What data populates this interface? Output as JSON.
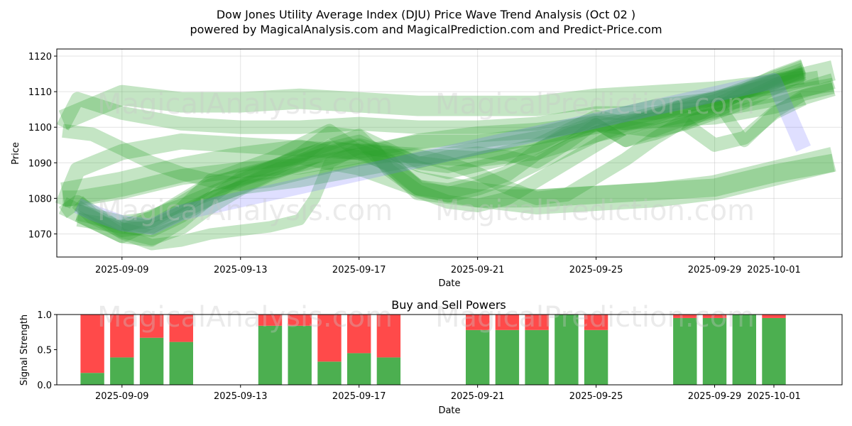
{
  "title_line1": "Dow Jones Utility Average Index (DJU) Price Wave Trend Analysis (Oct 02 )",
  "title_line2": "powered by MagicalAnalysis.com and MagicalPrediction.com and Predict-Price.com",
  "watermarks": [
    "MagicalAnalysis.com",
    "MagicalPrediction.com"
  ],
  "colors": {
    "wave": "#2ca02c",
    "wave_blue": "#6f6fff",
    "buy": "#4caf50",
    "sell": "#ff4a4a"
  },
  "chart_data": [
    {
      "type": "area",
      "title": "",
      "xlabel": "Date",
      "ylabel": "Price",
      "ylim": [
        1063.5,
        1122
      ],
      "xlim": [
        -2.2,
        24.3
      ],
      "x_ticks": [
        {
          "pos": 0,
          "label": "2025-09-09"
        },
        {
          "pos": 4,
          "label": "2025-09-13"
        },
        {
          "pos": 8,
          "label": "2025-09-17"
        },
        {
          "pos": 12,
          "label": "2025-09-21"
        },
        {
          "pos": 16,
          "label": "2025-09-25"
        },
        {
          "pos": 20,
          "label": "2025-09-29"
        },
        {
          "pos": 22,
          "label": "2025-10-01"
        }
      ],
      "y_ticks": [
        1070,
        1080,
        1090,
        1100,
        1110,
        1120
      ],
      "grid": true,
      "series": [
        {
          "name": "wave-1",
          "color": "green",
          "width": 14,
          "x": [
            -2,
            -1.5,
            0,
            2,
            4,
            6,
            8,
            10,
            12,
            14,
            16,
            18,
            20,
            22,
            24
          ],
          "values": [
            1078,
            1088,
            1093,
            1096,
            1095,
            1094,
            1093,
            1092,
            1091,
            1093,
            1098,
            1102,
            1105,
            1108,
            1113
          ]
        },
        {
          "name": "wave-2",
          "color": "green",
          "width": 12,
          "x": [
            -2,
            -1.5,
            0,
            2,
            4,
            6,
            8,
            10,
            12,
            14,
            16,
            18,
            20,
            22,
            24
          ],
          "values": [
            1100,
            1108,
            1104,
            1101,
            1100,
            1100,
            1101,
            1100,
            1100,
            1101,
            1104,
            1104,
            1106,
            1109,
            1112
          ]
        },
        {
          "name": "wave-3",
          "color": "green",
          "width": 14,
          "x": [
            -2,
            -1.5,
            0,
            2,
            4,
            6,
            8,
            10,
            12,
            14,
            16,
            18,
            20,
            22,
            24
          ],
          "values": [
            1080,
            1080,
            1082,
            1086,
            1088,
            1089,
            1092,
            1096,
            1098,
            1099,
            1101,
            1102,
            1103,
            1106,
            1111
          ]
        },
        {
          "name": "wave-4",
          "color": "green",
          "width": 12,
          "x": [
            -2,
            -1.5,
            0,
            1,
            2,
            3,
            4,
            5,
            6,
            7,
            8,
            10,
            12,
            14,
            16,
            18,
            20,
            22,
            23
          ],
          "values": [
            1076,
            1079,
            1071,
            1072,
            1077,
            1085,
            1088,
            1091,
            1095,
            1099,
            1093,
            1096,
            1096,
            1098,
            1102,
            1106,
            1108,
            1113,
            1114
          ]
        },
        {
          "name": "wave-5",
          "color": "green",
          "width": 16,
          "x": [
            -2,
            -1.5,
            0,
            1,
            2,
            3,
            4,
            6,
            8,
            9,
            10,
            12,
            14,
            16,
            18,
            20,
            22,
            24
          ],
          "values": [
            1078,
            1076,
            1070,
            1074,
            1078,
            1083,
            1086,
            1090,
            1094,
            1090,
            1082,
            1080,
            1080,
            1081,
            1082,
            1083,
            1087,
            1090
          ]
        },
        {
          "name": "wave-6",
          "color": "green",
          "width": 12,
          "x": [
            -1.5,
            0,
            1,
            2,
            3,
            4,
            6,
            8,
            10,
            12,
            14,
            16,
            18,
            20,
            22,
            23.5
          ],
          "values": [
            1074,
            1072,
            1071,
            1075,
            1080,
            1083,
            1085,
            1088,
            1091,
            1094,
            1097,
            1100,
            1104,
            1108,
            1112,
            1114
          ]
        },
        {
          "name": "wave-7",
          "color": "green",
          "width": 10,
          "x": [
            -1.5,
            0,
            1,
            2,
            3,
            4,
            6,
            8,
            9,
            10,
            11,
            12,
            13,
            14,
            15,
            16,
            17,
            18,
            19,
            20,
            21,
            22,
            23
          ],
          "values": [
            1075,
            1069,
            1068,
            1073,
            1080,
            1086,
            1092,
            1098,
            1094,
            1090,
            1092,
            1093,
            1092,
            1090,
            1095,
            1101,
            1096,
            1098,
            1101,
            1105,
            1110,
            1113,
            1115
          ]
        },
        {
          "name": "wave-8",
          "color": "green",
          "width": 14,
          "x": [
            -1.5,
            0,
            1,
            2,
            3,
            4,
            5,
            6,
            7,
            8,
            9,
            10,
            11,
            12,
            13,
            14,
            15,
            16,
            17,
            18,
            19,
            20,
            21,
            22,
            23
          ],
          "values": [
            1076,
            1073,
            1074,
            1079,
            1084,
            1086,
            1088,
            1092,
            1098,
            1097,
            1089,
            1083,
            1082,
            1084,
            1087,
            1093,
            1098,
            1101,
            1100,
            1103,
            1106,
            1108,
            1110,
            1114,
            1117
          ]
        },
        {
          "name": "wave-9",
          "color": "green",
          "width": 10,
          "x": [
            -1.5,
            0,
            1,
            2,
            3,
            4,
            5,
            6,
            6.5,
            7,
            8,
            9,
            10,
            11,
            12,
            13,
            14,
            15,
            16,
            17,
            18,
            19,
            20,
            21,
            22,
            23
          ],
          "values": [
            1078,
            1070,
            1067,
            1068,
            1070,
            1071,
            1072,
            1074,
            1080,
            1090,
            1094,
            1093,
            1089,
            1087,
            1089,
            1091,
            1094,
            1098,
            1101,
            1096,
            1099,
            1102,
            1104,
            1108,
            1112,
            1116
          ]
        },
        {
          "name": "wave-10",
          "color": "green",
          "width": 18,
          "x": [
            -2,
            0,
            2,
            4,
            6,
            8,
            10,
            12,
            14,
            16,
            18,
            20,
            22,
            24
          ],
          "values": [
            1102,
            1109,
            1107,
            1107,
            1108,
            1107,
            1106,
            1106,
            1106,
            1108,
            1109,
            1110,
            1112,
            1116
          ]
        },
        {
          "name": "wave-11",
          "color": "green",
          "width": 22,
          "x": [
            -2,
            0,
            2,
            4,
            6,
            8,
            10,
            12,
            14,
            16,
            18,
            20,
            22,
            24
          ],
          "values": [
            1081,
            1084,
            1088,
            1091,
            1093,
            1090,
            1084,
            1081,
            1079,
            1080,
            1081,
            1083,
            1087,
            1091
          ]
        },
        {
          "name": "wave-12",
          "color": "green",
          "width": 12,
          "x": [
            0,
            2,
            4,
            6,
            8,
            8.5,
            9,
            10,
            11,
            12,
            13,
            14,
            15,
            16,
            17,
            18,
            19,
            20,
            21,
            22,
            23
          ],
          "values": [
            1072,
            1078,
            1085,
            1092,
            1096,
            1094,
            1088,
            1082,
            1079,
            1078,
            1080,
            1085,
            1090,
            1095,
            1100,
            1099,
            1101,
            1104,
            1107,
            1111,
            1115
          ]
        },
        {
          "name": "wave-13",
          "color": "green",
          "width": 12,
          "x": [
            0,
            1,
            2,
            3,
            4,
            5,
            6,
            7,
            8,
            9,
            10,
            11,
            12,
            13,
            14,
            15,
            16,
            17,
            18,
            19,
            20,
            21,
            22,
            23
          ],
          "values": [
            1073,
            1072,
            1076,
            1080,
            1083,
            1087,
            1090,
            1093,
            1095,
            1093,
            1090,
            1089,
            1091,
            1093,
            1095,
            1099,
            1103,
            1101,
            1103,
            1106,
            1108,
            1111,
            1114,
            1117
          ]
        },
        {
          "name": "wave-14",
          "color": "green",
          "width": 14,
          "x": [
            -1.5,
            -1,
            0,
            1,
            2,
            3,
            4,
            5,
            6,
            7,
            8,
            9,
            10,
            11,
            12,
            13,
            14,
            15,
            16,
            17,
            18,
            19,
            20,
            21,
            22,
            23
          ],
          "values": [
            1079,
            1075,
            1071,
            1069,
            1072,
            1078,
            1083,
            1087,
            1090,
            1094,
            1093,
            1090,
            1083,
            1081,
            1083,
            1086,
            1090,
            1094,
            1098,
            1101,
            1103,
            1105,
            1107,
            1110,
            1113,
            1116
          ]
        },
        {
          "name": "wave-15",
          "color": "green",
          "width": 12,
          "x": [
            19,
            20,
            21,
            22,
            23
          ],
          "values": [
            1101,
            1095,
            1097,
            1104,
            1108
          ]
        },
        {
          "name": "wave-16",
          "color": "green",
          "width": 10,
          "x": [
            20,
            21,
            22,
            23,
            24
          ],
          "values": [
            1108,
            1096,
            1104,
            1109,
            1111
          ]
        },
        {
          "name": "wave-17",
          "color": "green",
          "width": 12,
          "x": [
            -2,
            -1,
            0,
            1,
            2,
            3,
            4,
            5,
            6,
            7,
            8,
            9,
            10,
            11,
            12,
            13,
            14,
            15,
            16,
            17,
            18,
            19,
            20,
            21,
            22,
            23
          ],
          "values": [
            1099,
            1098,
            1094,
            1090,
            1087,
            1085,
            1084,
            1085,
            1087,
            1089,
            1091,
            1092,
            1092,
            1090,
            1087,
            1083,
            1080,
            1081,
            1086,
            1091,
            1097,
            1102,
            1106,
            1110,
            1113,
            1115
          ]
        },
        {
          "name": "wave-blue",
          "color": "blue",
          "width": 14,
          "x": [
            -1.5,
            -1,
            0,
            1,
            2,
            22,
            23
          ],
          "values": [
            1078,
            1076,
            1073,
            1072,
            1076,
            1113,
            1094
          ]
        }
      ]
    },
    {
      "type": "bar",
      "title": "Buy and Sell Powers",
      "xlabel": "Date",
      "ylabel": "Signal Strength",
      "ylim": [
        0,
        1.0
      ],
      "xlim": [
        -2.2,
        24.3
      ],
      "x_ticks": [
        {
          "pos": 0,
          "label": "2025-09-09"
        },
        {
          "pos": 4,
          "label": "2025-09-13"
        },
        {
          "pos": 8,
          "label": "2025-09-17"
        },
        {
          "pos": 12,
          "label": "2025-09-21"
        },
        {
          "pos": 16,
          "label": "2025-09-25"
        },
        {
          "pos": 20,
          "label": "2025-09-29"
        },
        {
          "pos": 22,
          "label": "2025-10-01"
        }
      ],
      "y_ticks": [
        0.0,
        0.5,
        1.0
      ],
      "y_tick_labels": [
        "0.0",
        "0.5",
        "1.0"
      ],
      "x": [
        -1,
        0,
        1,
        2,
        5,
        6,
        7,
        8,
        9,
        12,
        13,
        14,
        15,
        16,
        19,
        20,
        21,
        22
      ],
      "series": [
        {
          "name": "Buy",
          "values": [
            0.17,
            0.39,
            0.67,
            0.61,
            0.84,
            0.84,
            0.33,
            0.45,
            0.39,
            0.78,
            0.78,
            0.78,
            1.0,
            0.78,
            0.95,
            0.95,
            1.0,
            0.95
          ]
        },
        {
          "name": "Sell",
          "values": [
            0.83,
            0.61,
            0.33,
            0.39,
            0.16,
            0.16,
            0.67,
            0.55,
            0.61,
            0.22,
            0.22,
            0.22,
            0.0,
            0.22,
            0.05,
            0.05,
            0.0,
            0.05
          ]
        }
      ]
    }
  ]
}
